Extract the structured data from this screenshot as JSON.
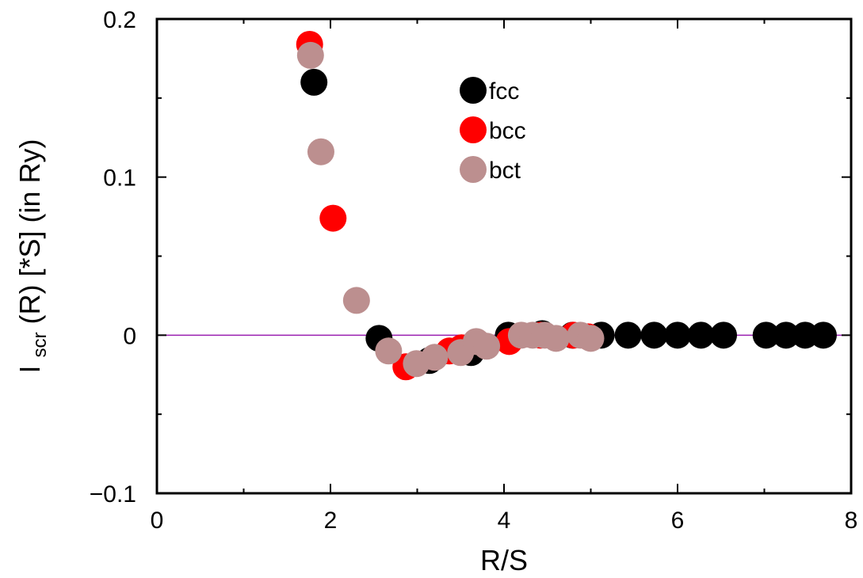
{
  "chart_data": {
    "type": "scatter",
    "xlabel": "R/S",
    "ylabel": {
      "main": "I",
      "subscript": "scr",
      "rest": "(R) [*S] (in Ry)"
    },
    "xlim": [
      0,
      8
    ],
    "ylim": [
      -0.1,
      0.2
    ],
    "x_ticks": [
      0,
      2,
      4,
      6,
      8
    ],
    "x_tick_labels": [
      "0",
      "2",
      "4",
      "6",
      "8"
    ],
    "y_ticks": [
      -0.1,
      0,
      0.1,
      0.2
    ],
    "y_tick_labels": [
      "−0.1",
      "0",
      "0.1",
      "0.2"
    ],
    "grid": false,
    "zero_line": {
      "y": 0,
      "color": "#9a1fb0"
    },
    "legend_position": "top-center",
    "series": [
      {
        "name": "fcc",
        "color": "#000000",
        "points": [
          [
            1.81,
            0.16
          ],
          [
            2.56,
            -0.002
          ],
          [
            3.14,
            -0.016
          ],
          [
            3.62,
            -0.011
          ],
          [
            4.05,
            0.0
          ],
          [
            4.44,
            0.001
          ],
          [
            4.79,
            0.0
          ],
          [
            5.12,
            0.0
          ],
          [
            5.43,
            0.0
          ],
          [
            5.73,
            0.0
          ],
          [
            6.0,
            0.0
          ],
          [
            6.27,
            0.0
          ],
          [
            6.53,
            0.0
          ],
          [
            7.02,
            0.0
          ],
          [
            7.25,
            0.0
          ],
          [
            7.47,
            0.0
          ],
          [
            7.68,
            0.0
          ]
        ]
      },
      {
        "name": "bcc",
        "color": "#ff0000",
        "points": [
          [
            1.76,
            0.184
          ],
          [
            2.03,
            0.074
          ],
          [
            2.87,
            -0.02
          ],
          [
            3.37,
            -0.01
          ],
          [
            3.51,
            -0.008
          ],
          [
            4.06,
            -0.004
          ],
          [
            4.42,
            0.0
          ],
          [
            4.8,
            0.0
          ],
          [
            4.97,
            -0.001
          ]
        ]
      },
      {
        "name": "bct",
        "color": "#bc8f8f",
        "points": [
          [
            1.77,
            0.177
          ],
          [
            1.89,
            0.116
          ],
          [
            2.3,
            0.022
          ],
          [
            2.67,
            -0.01
          ],
          [
            2.99,
            -0.018
          ],
          [
            3.2,
            -0.014
          ],
          [
            3.5,
            -0.011
          ],
          [
            3.68,
            -0.004
          ],
          [
            3.8,
            -0.007
          ],
          [
            4.2,
            0.0
          ],
          [
            4.33,
            0.0
          ],
          [
            4.47,
            0.0
          ],
          [
            4.6,
            -0.002
          ],
          [
            4.88,
            0.0
          ],
          [
            5.0,
            -0.002
          ]
        ]
      }
    ]
  }
}
